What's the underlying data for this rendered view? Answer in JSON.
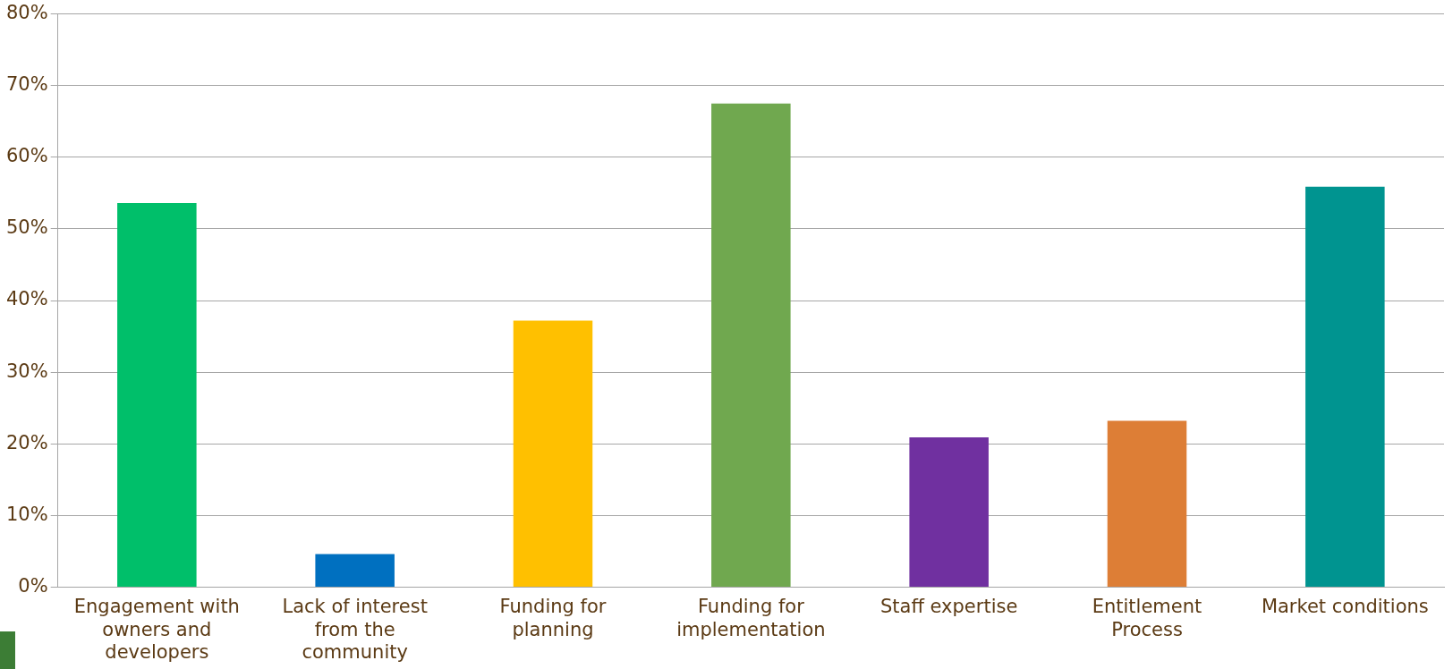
{
  "chart_data": {
    "type": "bar",
    "categories": [
      "Engagement with owners and developers",
      "Lack of interest from the community",
      "Funding for planning",
      "Funding for implementation",
      "Staff expertise",
      "Entitlement Process",
      "Market conditions"
    ],
    "values": [
      53.6,
      4.6,
      37.2,
      67.5,
      20.9,
      23.2,
      55.9
    ],
    "colors": [
      "#00bf6a",
      "#0070c0",
      "#ffc000",
      "#70a84f",
      "#7030a0",
      "#dd7e36",
      "#009490"
    ],
    "ylim": [
      0,
      80
    ],
    "yticks": [
      {
        "value": 0,
        "label": "0%"
      },
      {
        "value": 10,
        "label": "10%"
      },
      {
        "value": 20,
        "label": "20%"
      },
      {
        "value": 30,
        "label": "30%"
      },
      {
        "value": 40,
        "label": "40%"
      },
      {
        "value": 50,
        "label": "50%"
      },
      {
        "value": 60,
        "label": "60%"
      },
      {
        "value": 70,
        "label": "70%"
      },
      {
        "value": 80,
        "label": "80%"
      }
    ],
    "grid": "y",
    "legend": false
  }
}
